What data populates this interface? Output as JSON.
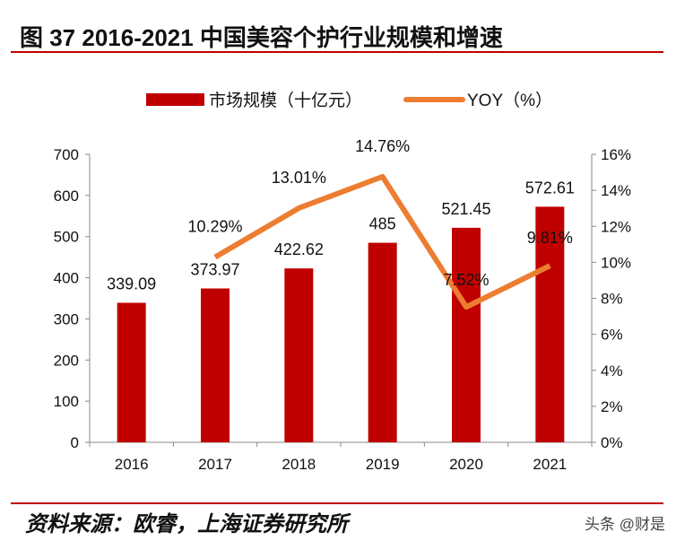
{
  "title": "图 37 2016-2021 中国美容个护行业规模和增速",
  "source": "资料来源：欧睿，上海证券研究所",
  "watermark": "头条 @财是",
  "colors": {
    "bar": "#c00000",
    "line": "#ed7d31",
    "rule": "#c00000"
  },
  "chart_data": {
    "type": "bar+line",
    "categories": [
      "2016",
      "2017",
      "2018",
      "2019",
      "2020",
      "2021"
    ],
    "series": [
      {
        "name": "市场规模（十亿元）",
        "type": "bar",
        "axis": "left",
        "values": [
          339.09,
          373.97,
          422.62,
          485,
          521.45,
          572.61
        ],
        "labels": [
          "339.09",
          "373.97",
          "422.62",
          "485",
          "521.45",
          "572.61"
        ]
      },
      {
        "name": "YOY（%）",
        "type": "line",
        "axis": "right",
        "values": [
          null,
          10.29,
          13.01,
          14.76,
          7.52,
          9.81
        ],
        "labels": [
          "",
          "10.29%",
          "13.01%",
          "14.76%",
          "7.52%",
          "9.81%"
        ]
      }
    ],
    "ylim": [
      0,
      700
    ],
    "yticks": [
      "0",
      "100",
      "200",
      "300",
      "400",
      "500",
      "600",
      "700"
    ],
    "y2lim": [
      0,
      16
    ],
    "y2ticks": [
      "0%",
      "2%",
      "4%",
      "6%",
      "8%",
      "10%",
      "12%",
      "14%",
      "16%"
    ],
    "legend": "top"
  }
}
